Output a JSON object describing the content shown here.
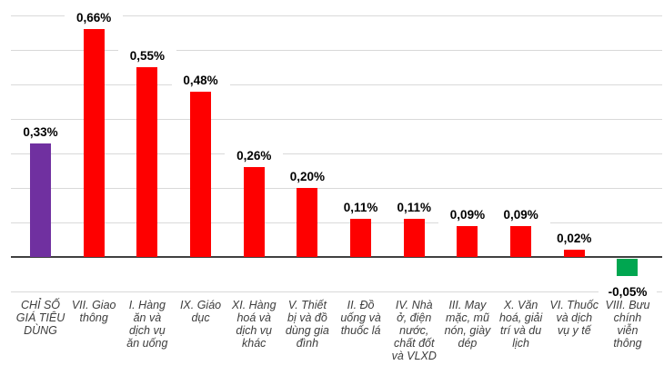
{
  "chart_data": {
    "type": "bar",
    "title": "",
    "xlabel": "",
    "ylabel": "",
    "unit": "%",
    "ylim": [
      -0.1,
      0.7
    ],
    "grid": "on",
    "grid_step": 0.1,
    "legend": "none",
    "categories": [
      "CHỈ SỐ\nGIÁ TIÊU\nDÙNG",
      "VII. Giao\nthông",
      "I. Hàng\năn và\ndịch vụ\năn uống",
      "IX. Giáo\ndục",
      "XI. Hàng\nhoá và\ndịch vụ\nkhác",
      "V. Thiết\nbị và đồ\ndùng gia\nđình",
      "II. Đồ\nuống và\nthuốc lá",
      "IV. Nhà\nở, điện\nnước,\nchất đốt\nvà VLXD",
      "III. May\nmặc, mũ\nnón, giày\ndép",
      "X. Văn\nhoá, giải\ntrí và du\nlịch",
      "VI. Thuốc\nvà dịch\nvụ y tế",
      "VIII. Bưu\nchính\nviễn\nthông"
    ],
    "values": [
      0.33,
      0.66,
      0.55,
      0.48,
      0.26,
      0.2,
      0.11,
      0.11,
      0.09,
      0.09,
      0.02,
      -0.05
    ],
    "value_labels": [
      "0,33%",
      "0,66%",
      "0,55%",
      "0,48%",
      "0,26%",
      "0,20%",
      "0,11%",
      "0,11%",
      "0,09%",
      "0,09%",
      "0,02%",
      "-0,05%"
    ],
    "colors": [
      "#7030a0",
      "#fe0000",
      "#fe0000",
      "#fe0000",
      "#fe0000",
      "#fe0000",
      "#fe0000",
      "#fe0000",
      "#fe0000",
      "#fe0000",
      "#fe0000",
      "#00a650"
    ]
  },
  "styles": {
    "bar_red": "#fe0000",
    "bar_purple": "#7030a0",
    "bar_green": "#00a650",
    "grid_color": "#d9d9d9",
    "axis_color": "#404040",
    "value_label_color": "#000000",
    "category_label_color": "#3d3d3d",
    "background": "#ffffff"
  }
}
